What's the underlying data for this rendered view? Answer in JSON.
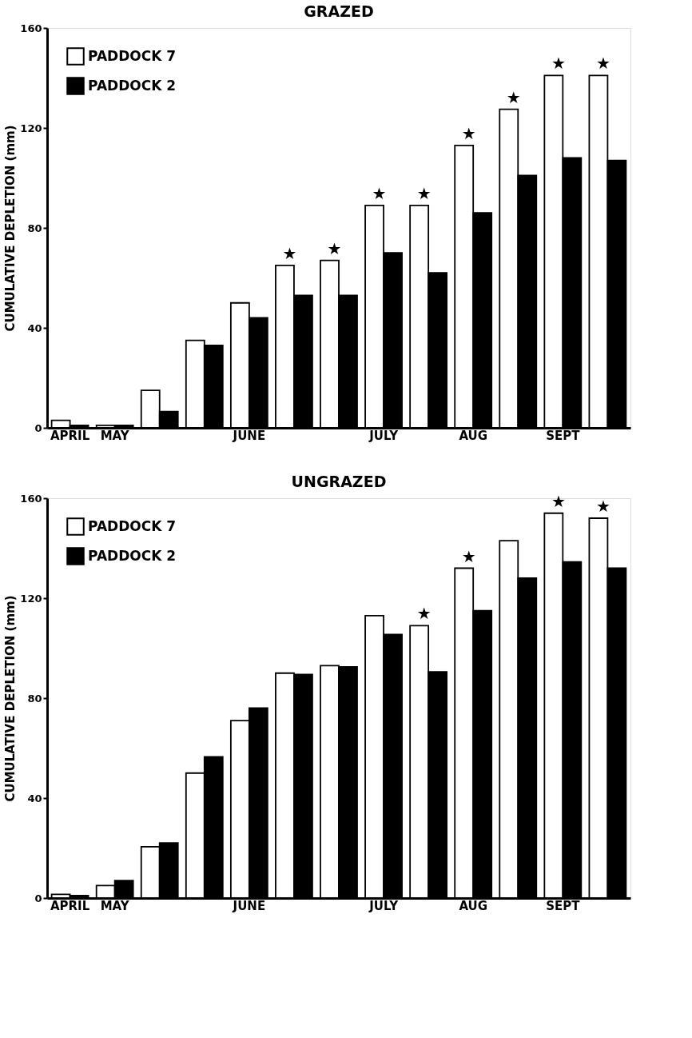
{
  "chart_data": [
    {
      "type": "bar",
      "title": "GRAZED",
      "categories": [
        "APRIL",
        "MAY",
        null,
        null,
        "JUNE",
        null,
        null,
        "JULY",
        null,
        "AUG",
        null,
        "SEPT",
        null
      ],
      "ylabel": "CUMULATIVE DEPLETION (mm)",
      "ylim": [
        0,
        160
      ],
      "yticks": [
        0,
        40,
        80,
        120,
        160
      ],
      "legend": "top left",
      "series": [
        {
          "name": "PADDOCK 7",
          "color": "#ffffff",
          "values": [
            3,
            1,
            15,
            35,
            50,
            65,
            67,
            89,
            89,
            113,
            127.5,
            141,
            141
          ],
          "value_labels": [
            null,
            null,
            null,
            null,
            null,
            "★",
            "★",
            "★",
            "★",
            "★",
            "★",
            "★",
            "★"
          ]
        },
        {
          "name": "PADDOCK 2",
          "color": "#000000",
          "values": [
            1,
            1,
            6.5,
            33,
            44,
            53,
            53,
            70,
            62,
            86,
            101,
            108,
            107
          ]
        }
      ]
    },
    {
      "type": "bar",
      "title": "UNGRAZED",
      "categories": [
        "APRIL",
        "MAY",
        null,
        null,
        "JUNE",
        null,
        null,
        "JULY",
        null,
        "AUG",
        null,
        "SEPT",
        null
      ],
      "ylabel": "CUMULATIVE DEPLETION (mm)",
      "ylim": [
        0,
        160
      ],
      "yticks": [
        0,
        40,
        80,
        120,
        160
      ],
      "legend": "top left",
      "series": [
        {
          "name": "PADDOCK 7",
          "color": "#ffffff",
          "values": [
            1.5,
            5,
            20.5,
            50,
            71,
            90,
            93,
            113,
            109,
            132,
            143,
            154,
            152
          ],
          "value_labels": [
            null,
            null,
            null,
            null,
            null,
            null,
            null,
            null,
            "★",
            "★",
            null,
            "★",
            "★"
          ]
        },
        {
          "name": "PADDOCK 2",
          "color": "#000000",
          "values": [
            1,
            7,
            22,
            56.5,
            76,
            89.5,
            92.5,
            105.5,
            90.5,
            115,
            128,
            134.5,
            132
          ]
        }
      ]
    }
  ]
}
